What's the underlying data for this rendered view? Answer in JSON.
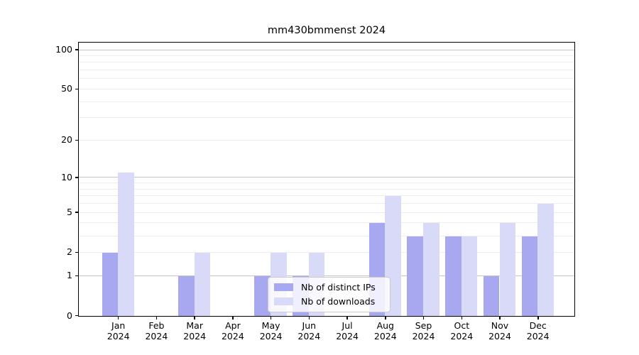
{
  "title": "mm430bmmenst 2024",
  "colors": {
    "distinct_ips": "#a8a8f0",
    "downloads": "#d9d9f8",
    "grid_major": "#c3c3c3",
    "grid_minor": "#ededed",
    "axis": "#000000"
  },
  "legend": {
    "items": [
      {
        "label": "Nb of distinct IPs",
        "color_key": "distinct_ips"
      },
      {
        "label": "Nb of downloads",
        "color_key": "downloads"
      }
    ]
  },
  "chart_data": {
    "type": "bar",
    "title": "mm430bmmenst 2024",
    "categories": [
      {
        "month": "Jan",
        "year": "2024"
      },
      {
        "month": "Feb",
        "year": "2024"
      },
      {
        "month": "Mar",
        "year": "2024"
      },
      {
        "month": "Apr",
        "year": "2024"
      },
      {
        "month": "May",
        "year": "2024"
      },
      {
        "month": "Jun",
        "year": "2024"
      },
      {
        "month": "Jul",
        "year": "2024"
      },
      {
        "month": "Aug",
        "year": "2024"
      },
      {
        "month": "Sep",
        "year": "2024"
      },
      {
        "month": "Oct",
        "year": "2024"
      },
      {
        "month": "Nov",
        "year": "2024"
      },
      {
        "month": "Dec",
        "year": "2024"
      }
    ],
    "series": [
      {
        "name": "Nb of distinct IPs",
        "color_key": "distinct_ips",
        "values": [
          2,
          0,
          1,
          0,
          1,
          1,
          0,
          4,
          3,
          3,
          1,
          3
        ]
      },
      {
        "name": "Nb of downloads",
        "color_key": "downloads",
        "values": [
          11,
          0,
          2,
          0,
          2,
          2,
          0,
          7,
          4,
          3,
          4,
          6
        ]
      }
    ],
    "yscale": "log1p",
    "ylim": [
      0,
      115
    ],
    "yticks": [
      0,
      1,
      2,
      5,
      10,
      20,
      50,
      100
    ],
    "grid": true,
    "grid_major_at": [
      1,
      10,
      100
    ],
    "legend_position": "lower center",
    "xlabel": "",
    "ylabel": ""
  }
}
